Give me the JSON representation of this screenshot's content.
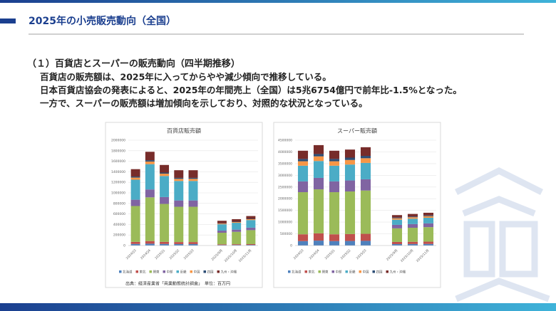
{
  "header": {
    "title": "2025年の小売販売動向（全国）"
  },
  "text": {
    "heading": "（１）百貨店とスーパーの販売動向（四半期推移）",
    "lines": [
      "百貨店の販売額は、2025年に入ってからやや減少傾向で推移している。",
      "日本百貨店協会の発表によると、2025年の年間売上（全国）は5兆6754億円で前年比-1.5%となった。",
      "一方で、スーパーの販売額は増加傾向を示しており、対照的な状況となっている。"
    ]
  },
  "source": "出典：経済産業省「商業動態統計調査」　単位：百万円",
  "chart_data": [
    {
      "type": "stacked-bar",
      "title": "百貨店販売額",
      "categories": [
        "2024Q3",
        "2024Q4",
        "2025Q1",
        "2025Q2",
        "2025Q3",
        null,
        "2025/9月",
        "2025/10月",
        "2025/11月"
      ],
      "ylim": [
        0,
        2000000
      ],
      "yticks": [
        0,
        200000,
        400000,
        600000,
        800000,
        1000000,
        1200000,
        1400000,
        1600000,
        1800000,
        2000000
      ],
      "series": [
        {
          "name": "北海道",
          "color": "#4f81bd",
          "values": [
            30000,
            35000,
            30000,
            28000,
            28000,
            null,
            10000,
            11000,
            12000
          ]
        },
        {
          "name": "東北",
          "color": "#c0504d",
          "values": [
            40000,
            50000,
            40000,
            38000,
            38000,
            null,
            13000,
            14000,
            15000
          ]
        },
        {
          "name": "関東",
          "color": "#9bbb59",
          "values": [
            680000,
            830000,
            720000,
            670000,
            670000,
            null,
            220000,
            235000,
            265000
          ]
        },
        {
          "name": "中部",
          "color": "#8064a2",
          "values": [
            120000,
            150000,
            130000,
            120000,
            120000,
            null,
            40000,
            42000,
            47000
          ]
        },
        {
          "name": "近畿",
          "color": "#4bacc6",
          "values": [
            380000,
            480000,
            400000,
            370000,
            370000,
            null,
            120000,
            130000,
            145000
          ]
        },
        {
          "name": "中国",
          "color": "#f79646",
          "values": [
            40000,
            50000,
            45000,
            40000,
            40000,
            null,
            13000,
            14000,
            16000
          ]
        },
        {
          "name": "四国",
          "color": "#2c4d75",
          "values": [
            20000,
            25000,
            20000,
            19000,
            19000,
            null,
            6000,
            6000,
            7000
          ]
        },
        {
          "name": "九州・沖縄",
          "color": "#772c2a",
          "values": [
            140000,
            160000,
            145000,
            145000,
            145000,
            null,
            48000,
            48000,
            53000
          ]
        }
      ]
    },
    {
      "type": "stacked-bar",
      "title": "スーパー販売額",
      "categories": [
        "2024Q3",
        "2024Q4",
        "2025Q1",
        "2025Q2",
        "2025Q3",
        null,
        "2025/9月",
        "2025/10月",
        "2025/11月"
      ],
      "ylim": [
        0,
        4500000
      ],
      "yticks": [
        0,
        500000,
        1000000,
        1500000,
        2000000,
        2500000,
        3000000,
        3500000,
        4000000,
        4500000
      ],
      "series": [
        {
          "name": "北海道",
          "color": "#4f81bd",
          "values": [
            190000,
            210000,
            190000,
            195000,
            200000,
            null,
            62000,
            65000,
            68000
          ]
        },
        {
          "name": "東北",
          "color": "#c0504d",
          "values": [
            290000,
            310000,
            290000,
            295000,
            300000,
            null,
            92000,
            95000,
            98000
          ]
        },
        {
          "name": "関東",
          "color": "#9bbb59",
          "values": [
            1800000,
            1880000,
            1800000,
            1820000,
            1850000,
            null,
            580000,
            600000,
            620000
          ]
        },
        {
          "name": "中部",
          "color": "#8064a2",
          "values": [
            460000,
            490000,
            460000,
            470000,
            480000,
            null,
            150000,
            155000,
            160000
          ]
        },
        {
          "name": "近畿",
          "color": "#4bacc6",
          "values": [
            670000,
            720000,
            670000,
            680000,
            700000,
            null,
            220000,
            230000,
            240000
          ]
        },
        {
          "name": "中国",
          "color": "#f79646",
          "values": [
            190000,
            200000,
            190000,
            195000,
            200000,
            null,
            62000,
            65000,
            68000
          ]
        },
        {
          "name": "四国",
          "color": "#2c4d75",
          "values": [
            100000,
            100000,
            100000,
            100000,
            100000,
            null,
            30000,
            30000,
            32000
          ]
        },
        {
          "name": "九州・沖縄",
          "color": "#772c2a",
          "values": [
            350000,
            380000,
            350000,
            345000,
            370000,
            null,
            104000,
            110000,
            114000
          ]
        }
      ]
    }
  ]
}
